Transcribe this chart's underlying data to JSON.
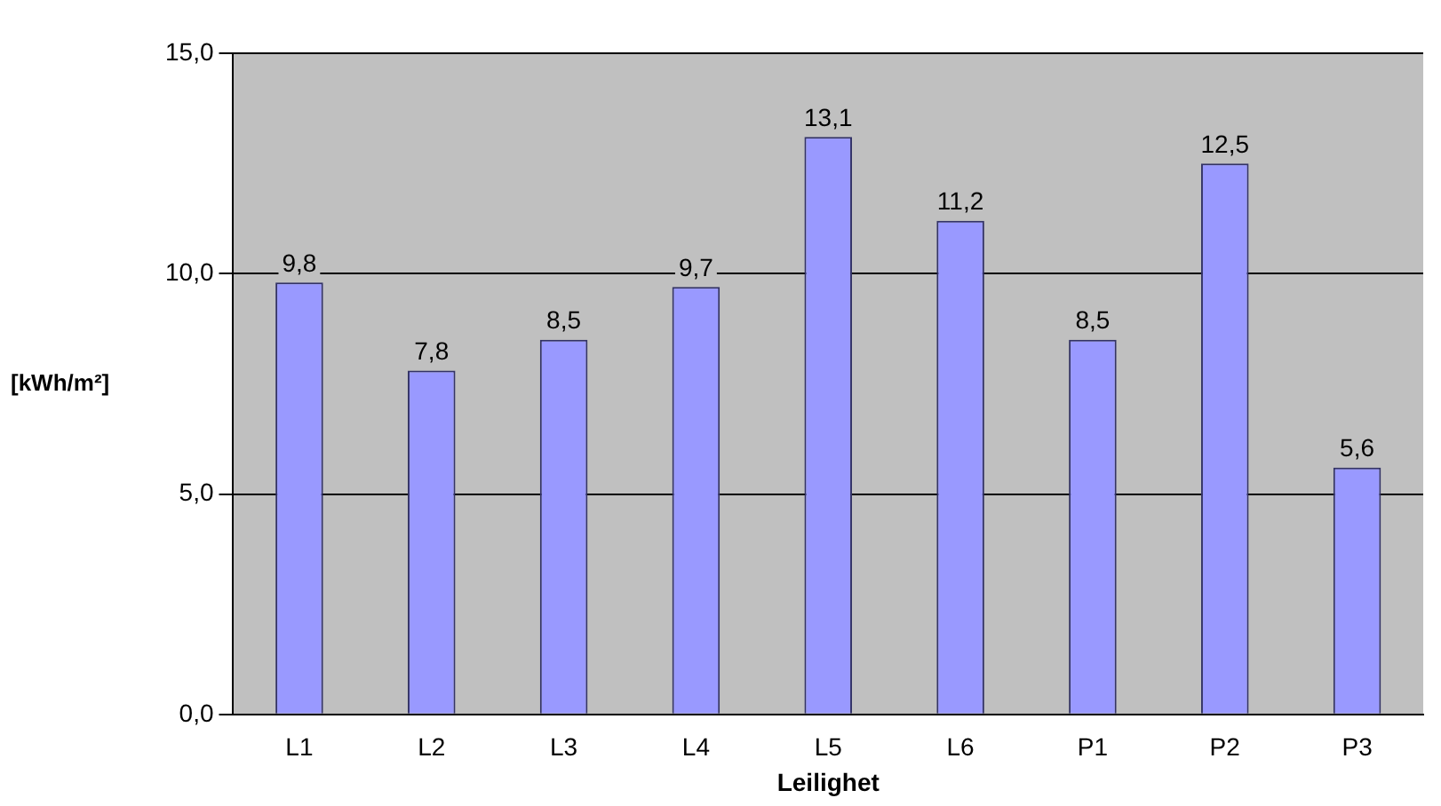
{
  "chart_data": {
    "type": "bar",
    "xlabel": "Leilighet",
    "ylabel": "[kWh/m²]",
    "categories": [
      "L1",
      "L2",
      "L3",
      "L4",
      "L5",
      "L6",
      "P1",
      "P2",
      "P3"
    ],
    "values": [
      9.8,
      7.8,
      8.5,
      9.7,
      13.1,
      11.2,
      8.5,
      12.5,
      5.6
    ],
    "value_labels": [
      "9,8",
      "7,8",
      "8,5",
      "9,7",
      "13,1",
      "11,2",
      "8,5",
      "12,5",
      "5,6"
    ],
    "color": "#9999ff",
    "ylim": [
      0,
      15
    ],
    "yticks": [
      {
        "value": 0,
        "label": "0,0"
      },
      {
        "value": 5,
        "label": "5,0"
      },
      {
        "value": 10,
        "label": "10,0"
      },
      {
        "value": 15,
        "label": "15,0"
      }
    ],
    "grid": "y",
    "legend": false
  }
}
